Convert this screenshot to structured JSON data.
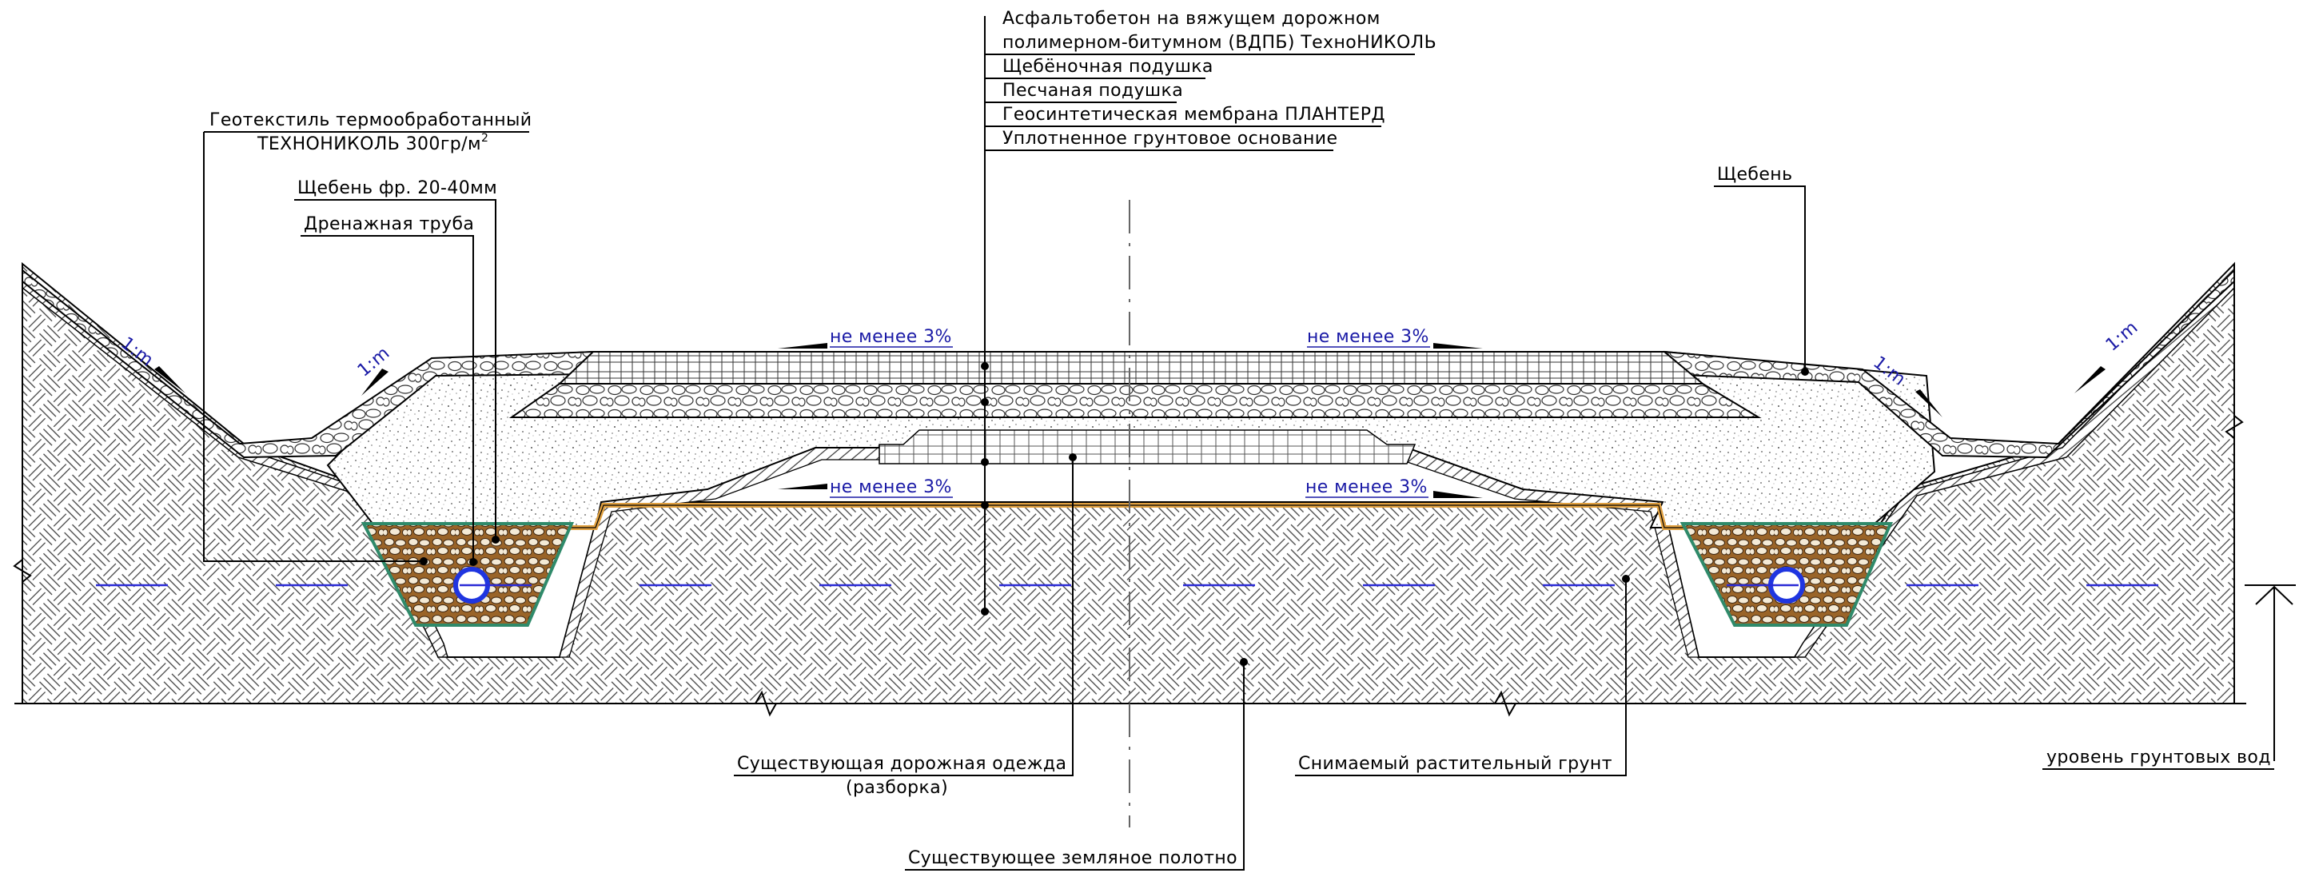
{
  "layers_callout": {
    "lines": [
      "Асфальтобетон на вяжущем дорожном",
      "полимерном-битумном (ВДПБ) ТехноНИКОЛЬ",
      "Щебёночная подушка",
      "Песчаная подушка",
      "Геосинтетическая мембрана ПЛАНТЕРД",
      "Уплотненное грунтовое основание"
    ]
  },
  "geotextile": {
    "line1": "Геотекстиль термообработанный",
    "line2": "ТЕХНОНИКОЛЬ 300гр/м",
    "superscript": "2"
  },
  "crushed_fraction": "Щебень фр. 20-40мм",
  "drain_pipe": "Дренажная труба",
  "crushed_stone": "Щебень",
  "slope_grade": "не менее 3%",
  "slope_ratio": "1:m",
  "existing_pavement": {
    "line1": "Существующая дорожная одежда",
    "line2": "(разборка)"
  },
  "existing_subgrade": "Существующее земляное полотно",
  "removed_topsoil": "Снимаемый растительный грунт",
  "groundwater_level": "уровень грунтовых вод",
  "colors": {
    "ink": "#000000",
    "annotation_blue": "#1a1aa6",
    "water_line_blue": "#2a2ad6",
    "pipe_blue": "#1f35e0",
    "geomembrane_orange": "#e0a040",
    "geotextile_green": "#2f8a6a",
    "drain_brown": "#9a6428"
  }
}
